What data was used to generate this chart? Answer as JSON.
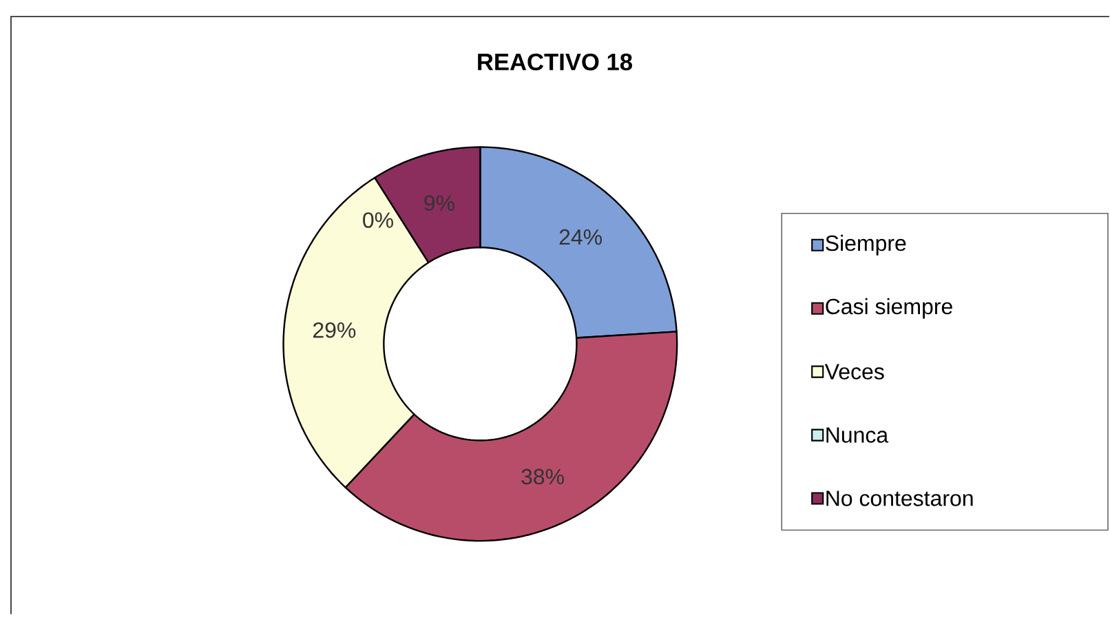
{
  "chart_data": {
    "type": "donut",
    "title": "REACTIVO 18",
    "categories": [
      "Siempre",
      "Casi siempre",
      "Veces",
      "Nunca",
      "No contestaron"
    ],
    "values": [
      24,
      38,
      29,
      0,
      9
    ],
    "colors": [
      "#7f9fd8",
      "#b84d6a",
      "#fdfcd8",
      "#cdeeee",
      "#8b2e5e"
    ],
    "value_labels": [
      "24%",
      "38%",
      "29%",
      "0%",
      "9%"
    ],
    "legend": "right"
  }
}
